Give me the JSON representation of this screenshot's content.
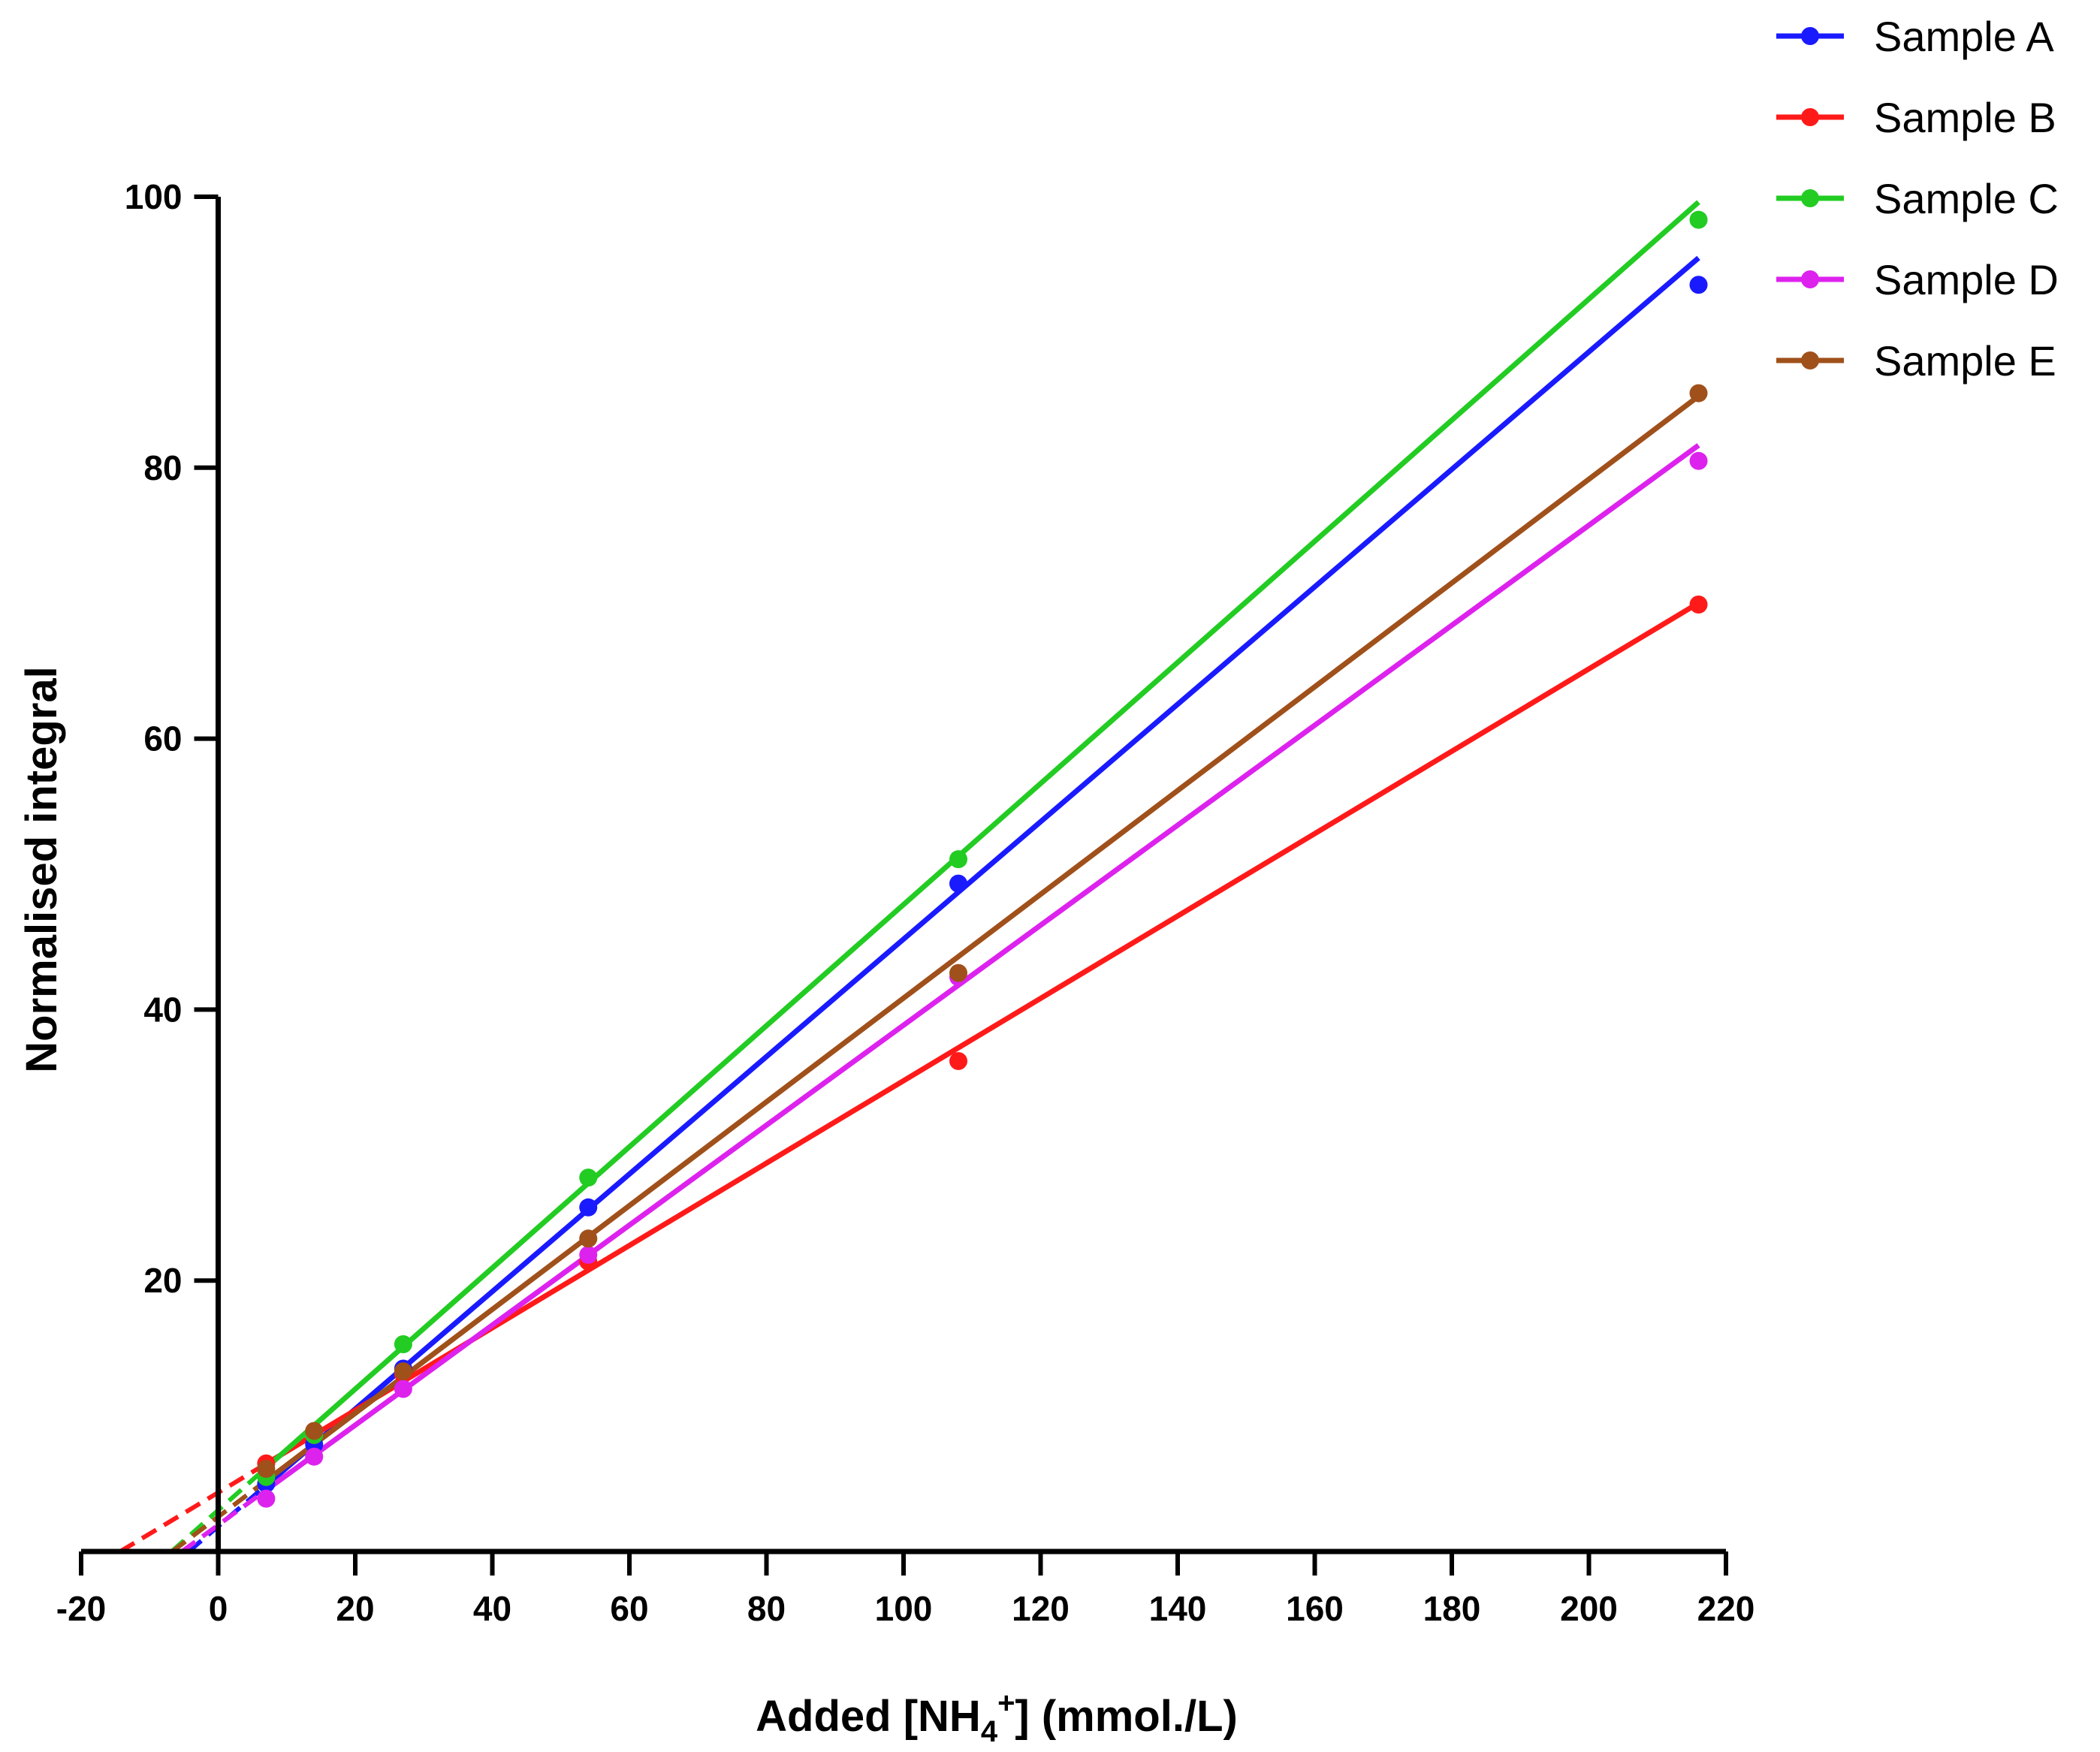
{
  "chart_data": {
    "type": "scatter",
    "title": "",
    "xlabel": {
      "prefix": "Added [NH",
      "sub": "4",
      "sup": "+",
      "suffix": "] (mmol./L)"
    },
    "ylabel": "Normalised integral",
    "xlim": [
      -20,
      220
    ],
    "ylim": [
      0,
      100
    ],
    "xticks": [
      -20,
      0,
      20,
      40,
      60,
      80,
      100,
      120,
      140,
      160,
      180,
      200,
      220
    ],
    "yticks": [
      20,
      40,
      60,
      80,
      100
    ],
    "legend_position": "top-right",
    "grid": false,
    "x": [
      7,
      14,
      27,
      54,
      108,
      216
    ],
    "series": [
      {
        "name": "Sample A",
        "color": "#1a1aff",
        "values": [
          5.0,
          7.9,
          13.5,
          25.4,
          49.3,
          93.5
        ],
        "fit": {
          "slope": 0.4335,
          "intercept": 1.85,
          "x_intercept": -4.3
        }
      },
      {
        "name": "Sample B",
        "color": "#ff1a1a",
        "values": [
          6.5,
          8.6,
          13.1,
          21.4,
          36.2,
          69.9
        ],
        "fit": {
          "slope": 0.304,
          "intercept": 4.35,
          "x_intercept": -14.3
        }
      },
      {
        "name": "Sample C",
        "color": "#22cc22",
        "values": [
          5.5,
          8.6,
          15.3,
          27.6,
          51.1,
          98.3
        ],
        "fit": {
          "slope": 0.447,
          "intercept": 3.05,
          "x_intercept": -6.8
        }
      },
      {
        "name": "Sample D",
        "color": "#dd22ee",
        "values": [
          3.9,
          7.0,
          12.0,
          21.9,
          42.4,
          80.5
        ],
        "fit": {
          "slope": 0.369,
          "intercept": 1.95,
          "x_intercept": -5.3
        }
      },
      {
        "name": "Sample E",
        "color": "#a0501a",
        "values": [
          6.1,
          8.9,
          13.3,
          23.1,
          42.7,
          85.5
        ],
        "fit": {
          "slope": 0.383,
          "intercept": 2.55,
          "x_intercept": -6.7
        }
      }
    ]
  }
}
